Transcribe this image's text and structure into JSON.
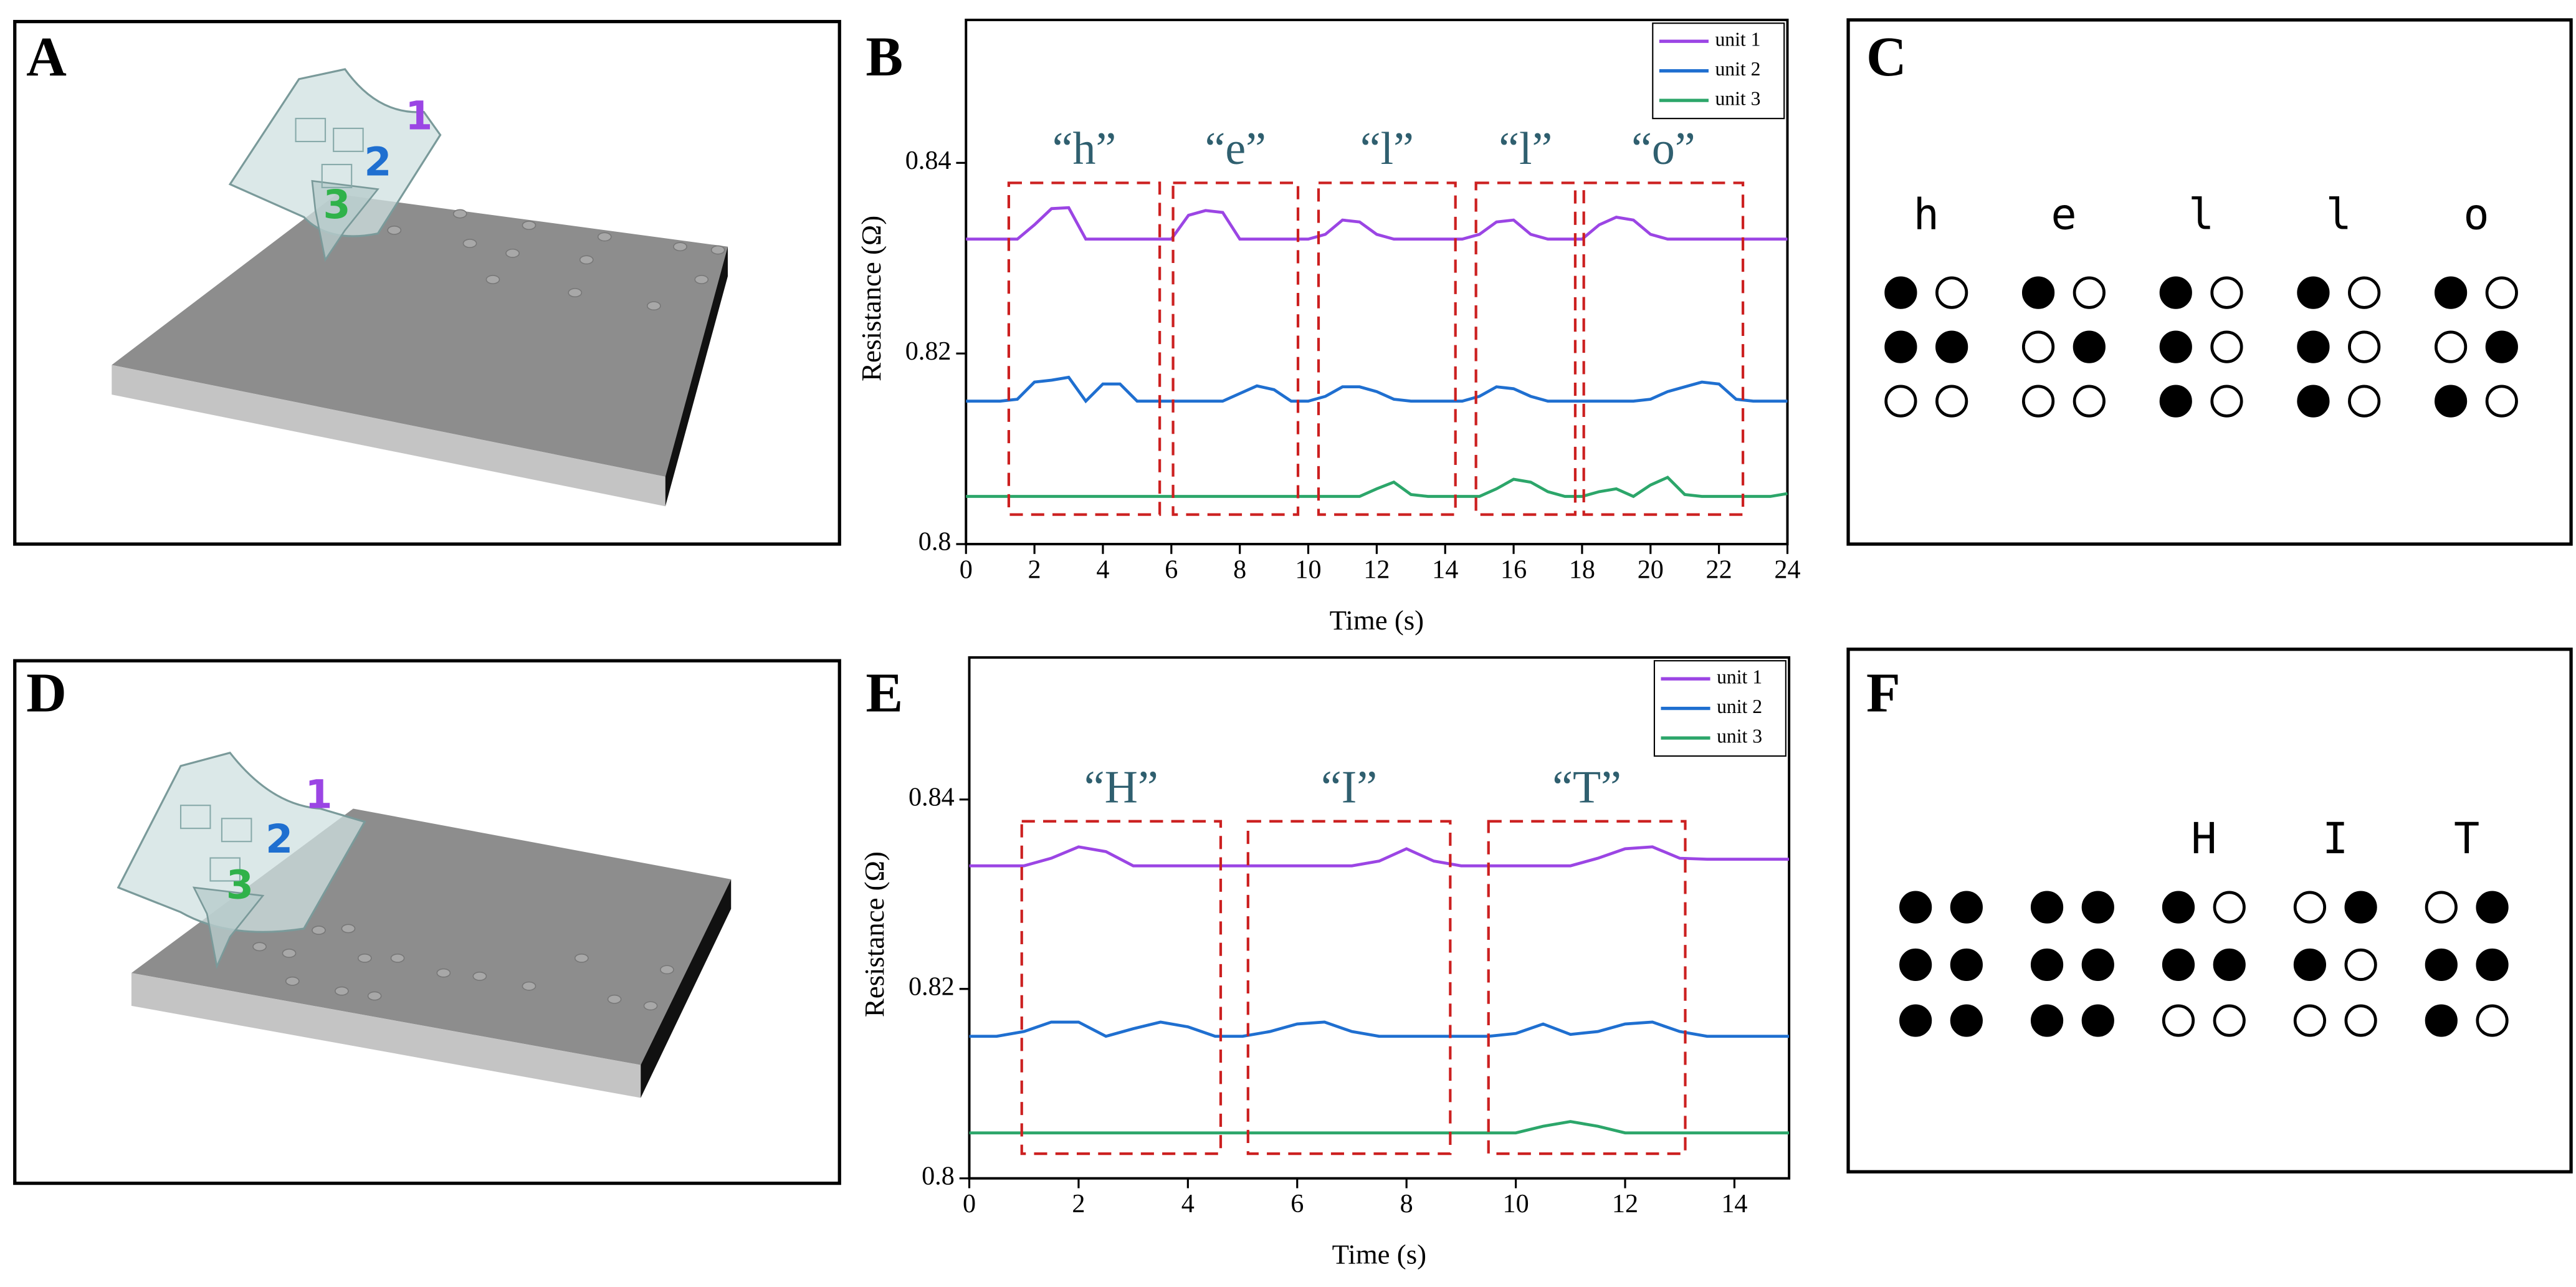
{
  "panel_labels": [
    "A",
    "B",
    "C",
    "D",
    "E",
    "F"
  ],
  "scene_labels": [
    [
      "1",
      "2",
      "3"
    ],
    [
      "1",
      "2",
      "3"
    ]
  ],
  "chart_data": [
    {
      "type": "line",
      "xlabel": "Time (s)",
      "ylabel": "Resistance (Ω)",
      "xlim": [
        0,
        24
      ],
      "ylim": [
        0.8,
        0.855
      ],
      "xticks": [
        0,
        2,
        4,
        6,
        8,
        10,
        12,
        14,
        16,
        18,
        20,
        22,
        24
      ],
      "yticks": [
        0.8,
        0.82,
        0.84
      ],
      "legend": "upper right",
      "x": [
        0,
        0.5,
        1,
        1.5,
        2,
        2.5,
        3,
        3.5,
        4,
        4.5,
        5,
        5.5,
        6,
        6.5,
        7,
        7.5,
        8,
        8.5,
        9,
        9.5,
        10,
        10.5,
        11,
        11.5,
        12,
        12.5,
        13,
        13.5,
        14,
        14.5,
        15,
        15.5,
        16,
        16.5,
        17,
        17.5,
        18,
        18.5,
        19,
        19.5,
        20,
        20.5,
        21,
        21.5,
        22,
        22.5,
        23,
        23.5,
        24
      ],
      "series": [
        {
          "name": "unit 1",
          "color": "#9b45e4",
          "values": [
            0.832,
            0.832,
            0.832,
            0.832,
            0.8335,
            0.8352,
            0.8353,
            0.832,
            0.832,
            0.832,
            0.832,
            0.832,
            0.832,
            0.8345,
            0.835,
            0.8348,
            0.832,
            0.832,
            0.832,
            0.832,
            0.832,
            0.8325,
            0.834,
            0.8338,
            0.8325,
            0.832,
            0.832,
            0.832,
            0.832,
            0.832,
            0.8325,
            0.8338,
            0.834,
            0.8325,
            0.832,
            0.832,
            0.832,
            0.8335,
            0.8343,
            0.834,
            0.8325,
            0.832,
            0.832,
            0.832,
            0.832,
            0.832,
            0.832,
            0.832,
            0.832
          ]
        },
        {
          "name": "unit 2",
          "color": "#1f6fd0",
          "values": [
            0.815,
            0.815,
            0.815,
            0.8152,
            0.817,
            0.8172,
            0.8175,
            0.815,
            0.8168,
            0.8168,
            0.815,
            0.815,
            0.815,
            0.815,
            0.815,
            0.815,
            0.8158,
            0.8166,
            0.8162,
            0.815,
            0.815,
            0.8155,
            0.8165,
            0.8165,
            0.816,
            0.8152,
            0.815,
            0.815,
            0.815,
            0.815,
            0.8155,
            0.8165,
            0.8163,
            0.8155,
            0.815,
            0.815,
            0.815,
            0.815,
            0.815,
            0.815,
            0.8152,
            0.816,
            0.8165,
            0.817,
            0.8168,
            0.8152,
            0.815,
            0.815,
            0.815
          ]
        },
        {
          "name": "unit 3",
          "color": "#2ca66a",
          "values": [
            0.805,
            0.805,
            0.805,
            0.805,
            0.805,
            0.805,
            0.805,
            0.805,
            0.805,
            0.805,
            0.805,
            0.805,
            0.805,
            0.805,
            0.805,
            0.805,
            0.805,
            0.805,
            0.805,
            0.805,
            0.805,
            0.805,
            0.805,
            0.805,
            0.8058,
            0.8065,
            0.8052,
            0.805,
            0.805,
            0.805,
            0.805,
            0.8058,
            0.8068,
            0.8065,
            0.8055,
            0.805,
            0.805,
            0.8055,
            0.8058,
            0.805,
            0.8062,
            0.807,
            0.8052,
            0.805,
            0.805,
            0.805,
            0.805,
            0.805,
            0.8053
          ]
        }
      ],
      "annotations": [
        {
          "text": "“h”",
          "x0": 1.25,
          "x1": 5.66,
          "y0": 0.8031,
          "y1": 0.8379
        },
        {
          "text": "“e”",
          "x0": 6.05,
          "x1": 9.7,
          "y0": 0.8031,
          "y1": 0.8379
        },
        {
          "text": "“l”",
          "x0": 10.3,
          "x1": 14.3,
          "y0": 0.8031,
          "y1": 0.8379
        },
        {
          "text": "“l”",
          "x0": 14.9,
          "x1": 17.8,
          "y0": 0.8031,
          "y1": 0.8379
        },
        {
          "text": "“o”",
          "x0": 18.05,
          "x1": 22.7,
          "y0": 0.8031,
          "y1": 0.8379
        }
      ]
    },
    {
      "type": "line",
      "xlabel": "Time (s)",
      "ylabel": "Resistance (Ω)",
      "xlim": [
        0,
        15
      ],
      "ylim": [
        0.8,
        0.855
      ],
      "xticks": [
        0,
        2,
        4,
        6,
        8,
        10,
        12,
        14
      ],
      "yticks": [
        0.8,
        0.82,
        0.84
      ],
      "legend": "upper right",
      "x": [
        0,
        0.5,
        1,
        1.5,
        2,
        2.5,
        3,
        3.5,
        4,
        4.5,
        5,
        5.5,
        6,
        6.5,
        7,
        7.5,
        8,
        8.5,
        9,
        9.5,
        10,
        10.5,
        11,
        11.5,
        12,
        12.5,
        13,
        13.5,
        14,
        14.5,
        15
      ],
      "series": [
        {
          "name": "unit 1",
          "color": "#9b45e4",
          "values": [
            0.833,
            0.833,
            0.833,
            0.8338,
            0.835,
            0.8345,
            0.833,
            0.833,
            0.833,
            0.833,
            0.833,
            0.833,
            0.833,
            0.833,
            0.833,
            0.8335,
            0.8348,
            0.8335,
            0.833,
            0.833,
            0.833,
            0.833,
            0.833,
            0.8338,
            0.8348,
            0.835,
            0.8338,
            0.8337,
            0.8337,
            0.8337,
            0.8337
          ]
        },
        {
          "name": "unit 2",
          "color": "#1f6fd0",
          "values": [
            0.815,
            0.815,
            0.8155,
            0.8165,
            0.8165,
            0.815,
            0.8158,
            0.8165,
            0.816,
            0.815,
            0.815,
            0.8155,
            0.8163,
            0.8165,
            0.8155,
            0.815,
            0.815,
            0.815,
            0.815,
            0.815,
            0.8153,
            0.8163,
            0.8152,
            0.8155,
            0.8163,
            0.8165,
            0.8155,
            0.815,
            0.815,
            0.815,
            0.815
          ]
        },
        {
          "name": "unit 3",
          "color": "#2ca66a",
          "values": [
            0.8048,
            0.8048,
            0.8048,
            0.8048,
            0.8048,
            0.8048,
            0.8048,
            0.8048,
            0.8048,
            0.8048,
            0.8048,
            0.8048,
            0.8048,
            0.8048,
            0.8048,
            0.8048,
            0.8048,
            0.8048,
            0.8048,
            0.8048,
            0.8048,
            0.8055,
            0.806,
            0.8055,
            0.8048,
            0.8048,
            0.8048,
            0.8048,
            0.8048,
            0.8048,
            0.8048
          ]
        }
      ],
      "annotations": [
        {
          "text": "“H”",
          "x0": 0.96,
          "x1": 4.6,
          "y0": 0.8026,
          "y1": 0.8377
        },
        {
          "text": "“I”",
          "x0": 5.1,
          "x1": 8.8,
          "y0": 0.8026,
          "y1": 0.8377
        },
        {
          "text": "“T”",
          "x0": 9.5,
          "x1": 13.1,
          "y0": 0.8026,
          "y1": 0.8377
        }
      ]
    }
  ],
  "braille": [
    {
      "letters": [
        "h",
        "e",
        "l",
        "l",
        "o"
      ],
      "cells": [
        [
          1,
          0,
          1,
          1,
          0,
          0
        ],
        [
          1,
          0,
          0,
          1,
          0,
          0
        ],
        [
          1,
          0,
          1,
          0,
          1,
          0
        ],
        [
          1,
          0,
          1,
          0,
          1,
          0
        ],
        [
          1,
          0,
          0,
          1,
          1,
          0
        ]
      ]
    },
    {
      "letters": [
        null,
        null,
        "H",
        "I",
        "T"
      ],
      "cells": [
        [
          1,
          1,
          1,
          1,
          1,
          1
        ],
        [
          1,
          1,
          1,
          1,
          1,
          1
        ],
        [
          1,
          0,
          1,
          1,
          0,
          0
        ],
        [
          0,
          1,
          1,
          0,
          0,
          0
        ],
        [
          0,
          1,
          1,
          1,
          1,
          0
        ]
      ]
    }
  ]
}
